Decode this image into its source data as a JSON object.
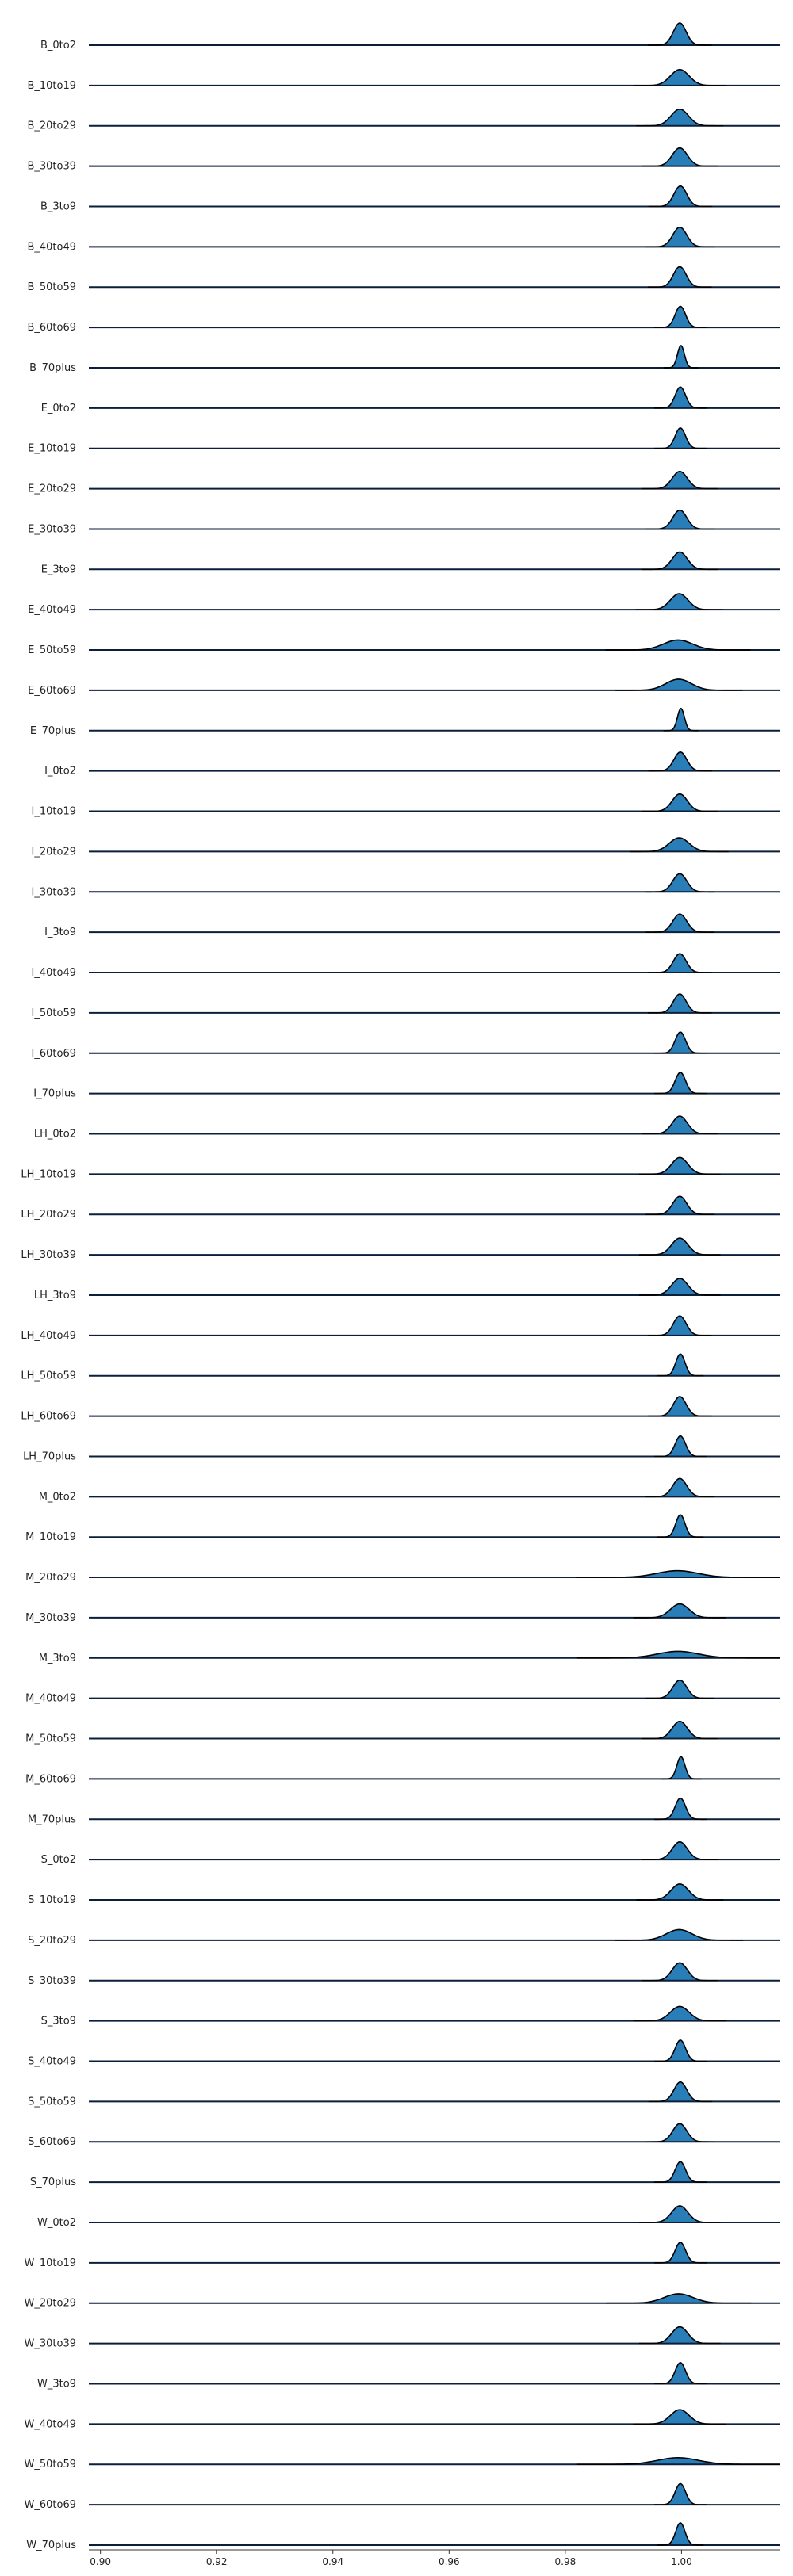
{
  "chart_data": {
    "type": "area",
    "subtype": "ridgeline",
    "title": "",
    "xlabel": "",
    "ylabel": "",
    "xlim": [
      0.898,
      1.017
    ],
    "x_ticks": [
      "0.90",
      "0.92",
      "0.94",
      "0.96",
      "0.98",
      "1.00"
    ],
    "x_tick_values": [
      0.9,
      0.92,
      0.94,
      0.96,
      0.98,
      1.0
    ],
    "grid": false,
    "legend": "none",
    "fill_color": "#1f77b4",
    "line_color": "#000000",
    "baseline_color": "#0b1f3a",
    "series": [
      {
        "name": "B_0to2",
        "peak": 0.9997,
        "spread": 0.0011,
        "height": 1.0
      },
      {
        "name": "B_10to19",
        "peak": 0.9997,
        "spread": 0.0016,
        "height": 0.72
      },
      {
        "name": "B_20to29",
        "peak": 0.9997,
        "spread": 0.0015,
        "height": 0.75
      },
      {
        "name": "B_30to39",
        "peak": 0.9997,
        "spread": 0.0013,
        "height": 0.82
      },
      {
        "name": "B_3to9",
        "peak": 0.9998,
        "spread": 0.0011,
        "height": 0.92
      },
      {
        "name": "B_40to49",
        "peak": 0.9997,
        "spread": 0.0012,
        "height": 0.88
      },
      {
        "name": "B_50to59",
        "peak": 0.9997,
        "spread": 0.0011,
        "height": 0.92
      },
      {
        "name": "B_60to69",
        "peak": 0.9998,
        "spread": 0.0009,
        "height": 0.95
      },
      {
        "name": "B_70plus",
        "peak": 0.9999,
        "spread": 0.0006,
        "height": 1.0
      },
      {
        "name": "E_0to2",
        "peak": 0.9998,
        "spread": 0.0009,
        "height": 0.95
      },
      {
        "name": "E_10to19",
        "peak": 0.9998,
        "spread": 0.0009,
        "height": 0.92
      },
      {
        "name": "E_20to29",
        "peak": 0.9997,
        "spread": 0.0013,
        "height": 0.78
      },
      {
        "name": "E_30to39",
        "peak": 0.9997,
        "spread": 0.0012,
        "height": 0.85
      },
      {
        "name": "E_3to9",
        "peak": 0.9997,
        "spread": 0.0013,
        "height": 0.78
      },
      {
        "name": "E_40to49",
        "peak": 0.9996,
        "spread": 0.0015,
        "height": 0.72
      },
      {
        "name": "E_50to59",
        "peak": 0.9994,
        "spread": 0.0025,
        "height": 0.45
      },
      {
        "name": "E_60to69",
        "peak": 0.9995,
        "spread": 0.0022,
        "height": 0.5
      },
      {
        "name": "E_70plus",
        "peak": 0.9999,
        "spread": 0.0006,
        "height": 1.0
      },
      {
        "name": "I_0to2",
        "peak": 0.9998,
        "spread": 0.0011,
        "height": 0.85
      },
      {
        "name": "I_10to19",
        "peak": 0.9997,
        "spread": 0.0013,
        "height": 0.78
      },
      {
        "name": "I_20to29",
        "peak": 0.9996,
        "spread": 0.0017,
        "height": 0.62
      },
      {
        "name": "I_30to39",
        "peak": 0.9997,
        "spread": 0.0012,
        "height": 0.82
      },
      {
        "name": "I_3to9",
        "peak": 0.9997,
        "spread": 0.0012,
        "height": 0.82
      },
      {
        "name": "I_40to49",
        "peak": 0.9997,
        "spread": 0.0011,
        "height": 0.85
      },
      {
        "name": "I_50to59",
        "peak": 0.9997,
        "spread": 0.0011,
        "height": 0.85
      },
      {
        "name": "I_60to69",
        "peak": 0.9998,
        "spread": 0.0009,
        "height": 0.95
      },
      {
        "name": "I_70plus",
        "peak": 0.9998,
        "spread": 0.0009,
        "height": 0.95
      },
      {
        "name": "LH_0to2",
        "peak": 0.9997,
        "spread": 0.0013,
        "height": 0.8
      },
      {
        "name": "LH_10to19",
        "peak": 0.9997,
        "spread": 0.0014,
        "height": 0.75
      },
      {
        "name": "LH_20to29",
        "peak": 0.9997,
        "spread": 0.0012,
        "height": 0.82
      },
      {
        "name": "LH_30to39",
        "peak": 0.9997,
        "spread": 0.0014,
        "height": 0.75
      },
      {
        "name": "LH_3to9",
        "peak": 0.9997,
        "spread": 0.0014,
        "height": 0.75
      },
      {
        "name": "LH_40to49",
        "peak": 0.9997,
        "spread": 0.0011,
        "height": 0.88
      },
      {
        "name": "LH_50to59",
        "peak": 0.9998,
        "spread": 0.0008,
        "height": 0.98
      },
      {
        "name": "LH_60to69",
        "peak": 0.9997,
        "spread": 0.0011,
        "height": 0.88
      },
      {
        "name": "LH_70plus",
        "peak": 0.9998,
        "spread": 0.0009,
        "height": 0.92
      },
      {
        "name": "M_0to2",
        "peak": 0.9997,
        "spread": 0.0012,
        "height": 0.82
      },
      {
        "name": "M_10to19",
        "peak": 0.9998,
        "spread": 0.0008,
        "height": 1.0
      },
      {
        "name": "M_20to29",
        "peak": 0.9993,
        "spread": 0.0035,
        "height": 0.3
      },
      {
        "name": "M_30to39",
        "peak": 0.9997,
        "spread": 0.0016,
        "height": 0.62
      },
      {
        "name": "M_3to9",
        "peak": 0.9994,
        "spread": 0.0035,
        "height": 0.3
      },
      {
        "name": "M_40to49",
        "peak": 0.9997,
        "spread": 0.0012,
        "height": 0.82
      },
      {
        "name": "M_50to59",
        "peak": 0.9997,
        "spread": 0.0013,
        "height": 0.78
      },
      {
        "name": "M_60to69",
        "peak": 0.9999,
        "spread": 0.0007,
        "height": 1.0
      },
      {
        "name": "M_70plus",
        "peak": 0.9998,
        "spread": 0.0009,
        "height": 0.95
      },
      {
        "name": "S_0to2",
        "peak": 0.9997,
        "spread": 0.0013,
        "height": 0.8
      },
      {
        "name": "S_10to19",
        "peak": 0.9997,
        "spread": 0.0015,
        "height": 0.72
      },
      {
        "name": "S_20to29",
        "peak": 0.9996,
        "spread": 0.0022,
        "height": 0.48
      },
      {
        "name": "S_30to39",
        "peak": 0.9997,
        "spread": 0.0013,
        "height": 0.8
      },
      {
        "name": "S_3to9",
        "peak": 0.9997,
        "spread": 0.0016,
        "height": 0.65
      },
      {
        "name": "S_40to49",
        "peak": 0.9998,
        "spread": 0.0009,
        "height": 0.95
      },
      {
        "name": "S_50to59",
        "peak": 0.9998,
        "spread": 0.0011,
        "height": 0.88
      },
      {
        "name": "S_60to69",
        "peak": 0.9997,
        "spread": 0.0012,
        "height": 0.82
      },
      {
        "name": "S_70plus",
        "peak": 0.9998,
        "spread": 0.0009,
        "height": 0.92
      },
      {
        "name": "W_0to2",
        "peak": 0.9997,
        "spread": 0.0014,
        "height": 0.75
      },
      {
        "name": "W_10to19",
        "peak": 0.9998,
        "spread": 0.0009,
        "height": 0.92
      },
      {
        "name": "W_20to29",
        "peak": 0.9995,
        "spread": 0.0025,
        "height": 0.42
      },
      {
        "name": "W_30to39",
        "peak": 0.9997,
        "spread": 0.0014,
        "height": 0.75
      },
      {
        "name": "W_3to9",
        "peak": 0.9998,
        "spread": 0.0009,
        "height": 0.95
      },
      {
        "name": "W_40to49",
        "peak": 0.9997,
        "spread": 0.0016,
        "height": 0.65
      },
      {
        "name": "W_50to59",
        "peak": 0.9994,
        "spread": 0.0035,
        "height": 0.3
      },
      {
        "name": "W_60to69",
        "peak": 0.9998,
        "spread": 0.0009,
        "height": 0.95
      },
      {
        "name": "W_70plus",
        "peak": 0.9998,
        "spread": 0.0008,
        "height": 1.0
      }
    ]
  }
}
